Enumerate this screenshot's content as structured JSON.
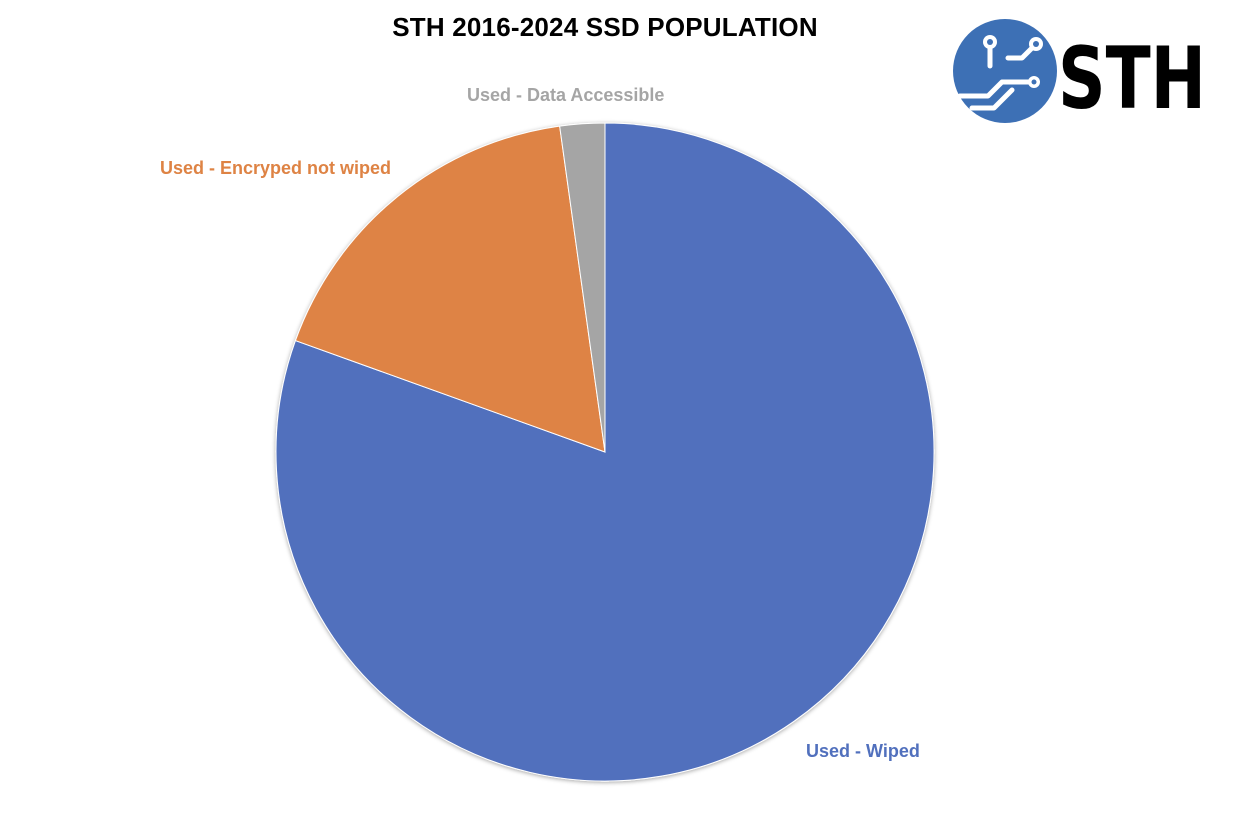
{
  "chart_data": {
    "type": "pie",
    "title": "STH 2016-2024 SSD POPULATION",
    "start_angle": "12 o'clock, clockwise",
    "slices": [
      {
        "label": "Used - Wiped",
        "value": 80.5,
        "color": "#5170BD"
      },
      {
        "label": "Used - Encryped not wiped",
        "value": 17.3,
        "color": "#DE8344"
      },
      {
        "label": "Used - Data Accessible",
        "value": 2.2,
        "color": "#A5A5A5"
      }
    ]
  },
  "logo": {
    "text": "STH",
    "icon": "circuit-globe-icon",
    "color": "#3D70B5"
  }
}
